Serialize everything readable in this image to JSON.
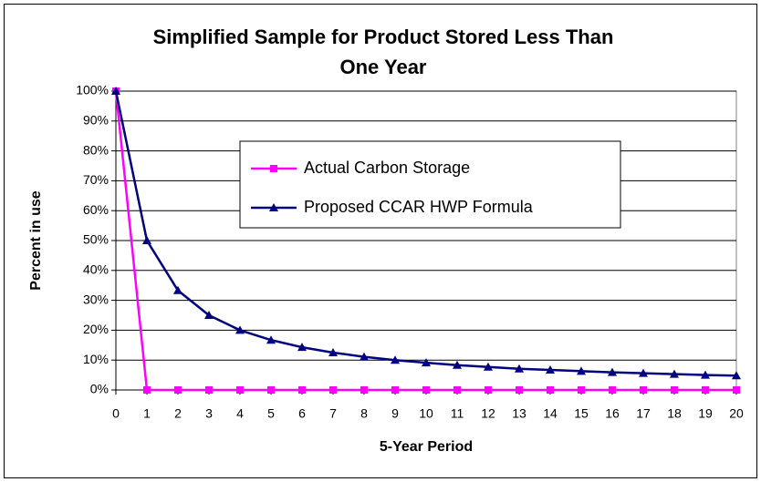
{
  "chart_data": {
    "type": "line",
    "title": "Simplified Sample for Product Stored Less Than One Year",
    "x_label": "5-Year Period",
    "y_label": "Percent in use",
    "x": [
      0,
      1,
      2,
      3,
      4,
      5,
      6,
      7,
      8,
      9,
      10,
      11,
      12,
      13,
      14,
      15,
      16,
      17,
      18,
      19,
      20
    ],
    "xlim": [
      0,
      20
    ],
    "xticks": [
      0,
      1,
      2,
      3,
      4,
      5,
      6,
      7,
      8,
      9,
      10,
      11,
      12,
      13,
      14,
      15,
      16,
      17,
      18,
      19,
      20
    ],
    "ylim": [
      0,
      100
    ],
    "yticks": [
      {
        "value": 0,
        "label": "0%"
      },
      {
        "value": 10,
        "label": "10%"
      },
      {
        "value": 20,
        "label": "20%"
      },
      {
        "value": 30,
        "label": "30%"
      },
      {
        "value": 40,
        "label": "40%"
      },
      {
        "value": 50,
        "label": "50%"
      },
      {
        "value": 60,
        "label": "60%"
      },
      {
        "value": 70,
        "label": "70%"
      },
      {
        "value": 80,
        "label": "80%"
      },
      {
        "value": 90,
        "label": "90%"
      },
      {
        "value": 100,
        "label": "100%"
      }
    ],
    "grid": true,
    "legend": "center",
    "series": [
      {
        "name": "Actual Carbon Storage",
        "color": "#ff00ff",
        "marker": "square",
        "values": [
          100,
          0,
          0,
          0,
          0,
          0,
          0,
          0,
          0,
          0,
          0,
          0,
          0,
          0,
          0,
          0,
          0,
          0,
          0,
          0,
          0
        ]
      },
      {
        "name": "Proposed CCAR HWP Formula",
        "color": "#000080",
        "marker": "triangle",
        "values": [
          100,
          50,
          33.3,
          25,
          20,
          16.7,
          14.3,
          12.5,
          11.1,
          10,
          9.1,
          8.3,
          7.7,
          7.1,
          6.7,
          6.3,
          5.9,
          5.6,
          5.3,
          5,
          4.8
        ]
      }
    ]
  }
}
